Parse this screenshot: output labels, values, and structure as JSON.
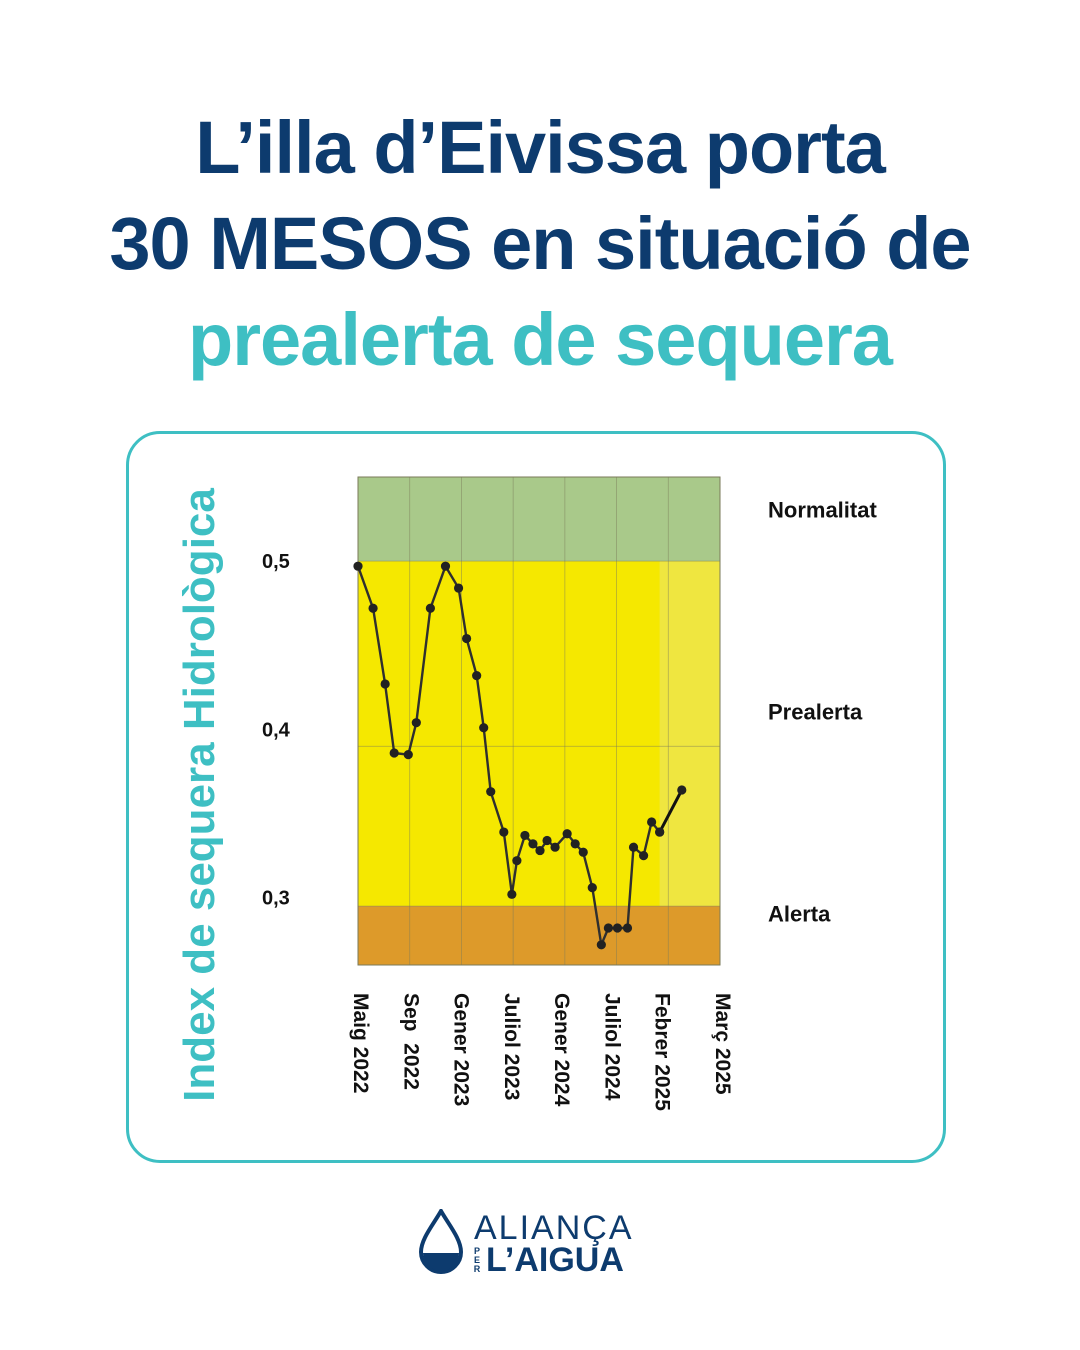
{
  "title": {
    "line1": "L’illa d’Eivissa porta",
    "line2": "30 MESOS en situació de",
    "line3": "prealerta de sequera"
  },
  "logo": {
    "top": "ALIANÇA",
    "per": "PER",
    "bottom": "L’AIGUA",
    "icon": "water-drop-icon"
  },
  "colors": {
    "navy": "#0d3b6e",
    "teal": "#3ebfc3",
    "normalitat": "#a9c98a",
    "prealerta": "#f5e800",
    "prealerta_forecast": "#efe640",
    "alerta": "#dd9a2a"
  },
  "chart_data": {
    "type": "line",
    "ylabel": "Index de sequera Hidrològica",
    "ylim": [
      0.26,
      0.55
    ],
    "yticks": [
      {
        "value": 0.5,
        "label": "0,5"
      },
      {
        "value": 0.4,
        "label": "0,4"
      },
      {
        "value": 0.3,
        "label": "0,3"
      }
    ],
    "zones": [
      {
        "name": "Normalitat",
        "from": 0.5,
        "to": 0.55
      },
      {
        "name": "Prealerta",
        "from": 0.295,
        "to": 0.5
      },
      {
        "name": "Alerta",
        "from": 0.26,
        "to": 0.295
      }
    ],
    "zone_labels": [
      {
        "text": "Normalitat",
        "value": 0.53
      },
      {
        "text": "Prealerta",
        "value": 0.41
      },
      {
        "text": "Alerta",
        "value": 0.29
      }
    ],
    "xlim": [
      0,
      36
    ],
    "xticks": [
      {
        "label": "Maig 2022",
        "month": 0
      },
      {
        "label": "Sep  2022",
        "month": 5
      },
      {
        "label": "Gener 2023",
        "month": 10
      },
      {
        "label": "Juliol 2023",
        "month": 15
      },
      {
        "label": "Gener 2024",
        "month": 20
      },
      {
        "label": "Juliol 2024",
        "month": 25
      },
      {
        "label": "Febrer 2025",
        "month": 30
      },
      {
        "label": "Març 2025",
        "month": 36
      }
    ],
    "series": [
      {
        "x": [
          0,
          1.5,
          2.7,
          3.6,
          5,
          5.8,
          7.2,
          8.7,
          10,
          10.8,
          11.8,
          12.5,
          13.2,
          14.5,
          15.3,
          15.8,
          16.6,
          17.4,
          18.1,
          18.8,
          19.6,
          20.8,
          21.6,
          22.4,
          23.3,
          24.2,
          24.9,
          25.8,
          26.8,
          27.4,
          28.4,
          29.2,
          30
        ],
        "y": [
          0.497,
          0.472,
          0.427,
          0.386,
          0.385,
          0.404,
          0.472,
          0.497,
          0.484,
          0.454,
          0.432,
          0.401,
          0.363,
          0.339,
          0.302,
          0.322,
          0.337,
          0.332,
          0.328,
          0.334,
          0.33,
          0.338,
          0.332,
          0.327,
          0.306,
          0.272,
          0.282,
          0.282,
          0.282,
          0.33,
          0.325,
          0.345,
          0.339
        ]
      },
      {
        "style": "forecast",
        "x": [
          30,
          32.2
        ],
        "y": [
          0.339,
          0.364
        ]
      }
    ]
  }
}
